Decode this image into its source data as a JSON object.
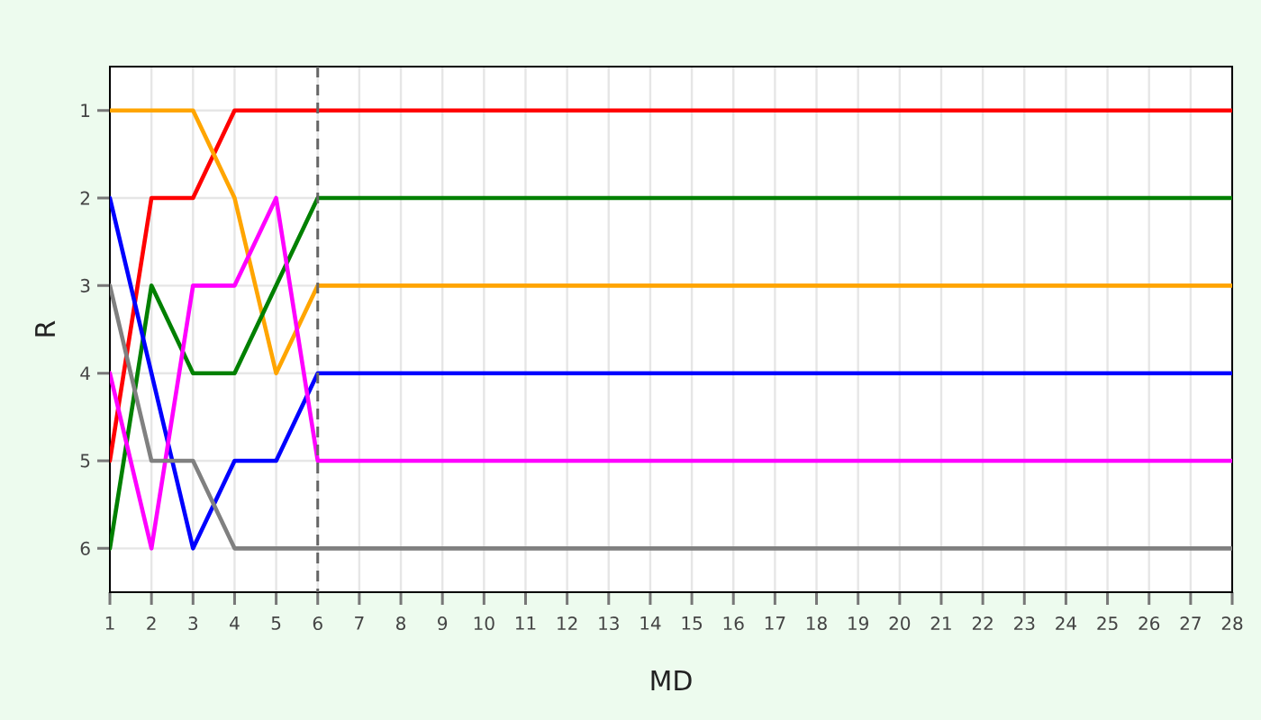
{
  "chart_data": {
    "type": "line",
    "xlabel": "MD",
    "ylabel": "R",
    "x": [
      1,
      2,
      3,
      4,
      5,
      6,
      7,
      8,
      9,
      10,
      11,
      12,
      13,
      14,
      15,
      16,
      17,
      18,
      19,
      20,
      21,
      22,
      23,
      24,
      25,
      26,
      27,
      28
    ],
    "series": [
      {
        "color": "#ff0000",
        "values": [
          5,
          2,
          2,
          1,
          1,
          1,
          1,
          1,
          1,
          1,
          1,
          1,
          1,
          1,
          1,
          1,
          1,
          1,
          1,
          1,
          1,
          1,
          1,
          1,
          1,
          1,
          1,
          1
        ]
      },
      {
        "color": "#ffa500",
        "values": [
          1,
          1,
          1,
          2,
          4,
          3,
          3,
          3,
          3,
          3,
          3,
          3,
          3,
          3,
          3,
          3,
          3,
          3,
          3,
          3,
          3,
          3,
          3,
          3,
          3,
          3,
          3,
          3
        ]
      },
      {
        "color": "#008000",
        "values": [
          6,
          3,
          4,
          4,
          3,
          2,
          2,
          2,
          2,
          2,
          2,
          2,
          2,
          2,
          2,
          2,
          2,
          2,
          2,
          2,
          2,
          2,
          2,
          2,
          2,
          2,
          2,
          2
        ]
      },
      {
        "color": "#0000ff",
        "values": [
          2,
          4,
          6,
          5,
          5,
          4,
          4,
          4,
          4,
          4,
          4,
          4,
          4,
          4,
          4,
          4,
          4,
          4,
          4,
          4,
          4,
          4,
          4,
          4,
          4,
          4,
          4,
          4
        ]
      },
      {
        "color": "#ff00ff",
        "values": [
          4,
          6,
          3,
          3,
          2,
          5,
          5,
          5,
          5,
          5,
          5,
          5,
          5,
          5,
          5,
          5,
          5,
          5,
          5,
          5,
          5,
          5,
          5,
          5,
          5,
          5,
          5,
          5
        ]
      },
      {
        "color": "#808080",
        "values": [
          3,
          5,
          5,
          6,
          6,
          6,
          6,
          6,
          6,
          6,
          6,
          6,
          6,
          6,
          6,
          6,
          6,
          6,
          6,
          6,
          6,
          6,
          6,
          6,
          6,
          6,
          6,
          6
        ]
      }
    ],
    "xlim": [
      1,
      28
    ],
    "xticks": [
      1,
      2,
      3,
      4,
      5,
      6,
      7,
      8,
      9,
      10,
      11,
      12,
      13,
      14,
      15,
      16,
      17,
      18,
      19,
      20,
      21,
      22,
      23,
      24,
      25,
      26,
      27,
      28
    ],
    "ylim": [
      6.5,
      0.5
    ],
    "yticks": [
      1,
      2,
      3,
      4,
      5,
      6
    ],
    "grid": true,
    "marker": "none",
    "line_style": "solid",
    "ref_lines": [
      {
        "axis": "x",
        "value": 6,
        "color": "#666666",
        "line_style": "dashed"
      }
    ]
  }
}
